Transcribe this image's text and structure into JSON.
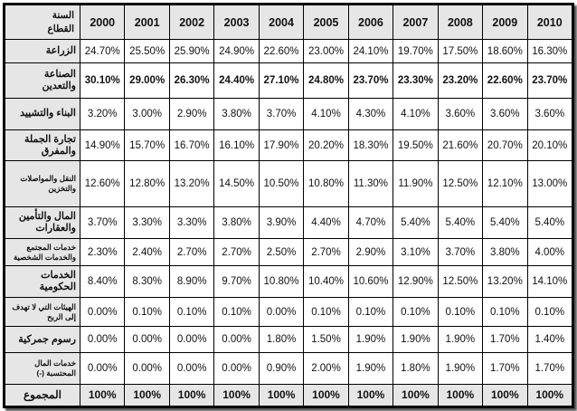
{
  "table": {
    "corner_top": "السنة",
    "corner_bottom": "القطاع",
    "years": [
      "2000",
      "2001",
      "2002",
      "2003",
      "2004",
      "2005",
      "2006",
      "2007",
      "2008",
      "2009",
      "2010"
    ],
    "rows": [
      {
        "label": "الزراعة",
        "values": [
          "24.70%",
          "25.50%",
          "25.90%",
          "24.90%",
          "22.60%",
          "23.00%",
          "24.10%",
          "19.70%",
          "17.50%",
          "18.60%",
          "16.30%"
        ]
      },
      {
        "label": "الصناعة والتعدين",
        "values": [
          "30.10%",
          "29.00%",
          "26.30%",
          "24.40%",
          "27.10%",
          "24.80%",
          "23.70%",
          "23.30%",
          "23.20%",
          "22.60%",
          "23.70%"
        ]
      },
      {
        "label": "البناء والتشييد",
        "values": [
          "3.20%",
          "3.00%",
          "2.90%",
          "3.80%",
          "3.70%",
          "4.10%",
          "4.30%",
          "4.10%",
          "3.60%",
          "3.60%",
          "3.60%"
        ]
      },
      {
        "label": "تجارة الجملة والمفرق",
        "values": [
          "14.90%",
          "15.70%",
          "16.70%",
          "16.10%",
          "17.90%",
          "20.20%",
          "18.30%",
          "19.50%",
          "21.60%",
          "20.70%",
          "20.10%"
        ]
      },
      {
        "label": "النقل والمواصلات والتخزين",
        "values": [
          "12.60%",
          "12.80%",
          "13.20%",
          "14.50%",
          "10.50%",
          "10.80%",
          "11.30%",
          "11.90%",
          "12.50%",
          "12.10%",
          "13.00%"
        ]
      },
      {
        "label": "المال والتأمين والعقارات",
        "values": [
          "3.70%",
          "3.30%",
          "3.30%",
          "3.80%",
          "3.90%",
          "4.40%",
          "4.70%",
          "5.40%",
          "5.40%",
          "5.40%",
          "5.40%"
        ]
      },
      {
        "label": "خدمات المجتمع والخدمات الشخصية",
        "values": [
          "2.30%",
          "2.40%",
          "2.70%",
          "2.70%",
          "2.50%",
          "2.70%",
          "2.90%",
          "3.10%",
          "3.70%",
          "3.80%",
          "4.00%"
        ]
      },
      {
        "label": "الخدمات الحكومية",
        "values": [
          "8.40%",
          "8.30%",
          "8.90%",
          "9.70%",
          "10.80%",
          "10.40%",
          "10.60%",
          "12.90%",
          "12.50%",
          "13.20%",
          "14.10%"
        ]
      },
      {
        "label": "الهيئات التي لا تهدف إلى الربح",
        "values": [
          "0.00%",
          "0.10%",
          "0.10%",
          "0.10%",
          "0.00%",
          "0.10%",
          "0.10%",
          "0.10%",
          "0.10%",
          "0.10%",
          "0.10%"
        ]
      },
      {
        "label": "رسوم جمركية",
        "values": [
          "0.00%",
          "0.00%",
          "0.00%",
          "0.00%",
          "1.80%",
          "1.50%",
          "1.90%",
          "1.90%",
          "1.90%",
          "1.70%",
          "1.40%"
        ]
      },
      {
        "label": "خدمات المال المحتسبة (-)",
        "values": [
          "0.00%",
          "0.00%",
          "0.00%",
          "0.00%",
          "0.90%",
          "2.00%",
          "1.90%",
          "1.80%",
          "1.90%",
          "1.70%",
          "1.70%"
        ]
      },
      {
        "label": "المجموع",
        "values": [
          "100%",
          "100%",
          "100%",
          "100%",
          "100%",
          "100%",
          "100%",
          "100%",
          "100%",
          "100%",
          "100%"
        ]
      }
    ]
  },
  "chart_data": {
    "type": "table",
    "columns": [
      "2000",
      "2001",
      "2002",
      "2003",
      "2004",
      "2005",
      "2006",
      "2007",
      "2008",
      "2009",
      "2010"
    ],
    "row_header": "القطاع",
    "column_header": "السنة",
    "rows": [
      {
        "label": "الزراعة",
        "values": [
          24.7,
          25.5,
          25.9,
          24.9,
          22.6,
          23.0,
          24.1,
          19.7,
          17.5,
          18.6,
          16.3
        ]
      },
      {
        "label": "الصناعة والتعدين",
        "values": [
          30.1,
          29.0,
          26.3,
          24.4,
          27.1,
          24.8,
          23.7,
          23.3,
          23.2,
          22.6,
          23.7
        ]
      },
      {
        "label": "البناء والتشييد",
        "values": [
          3.2,
          3.0,
          2.9,
          3.8,
          3.7,
          4.1,
          4.3,
          4.1,
          3.6,
          3.6,
          3.6
        ]
      },
      {
        "label": "تجارة الجملة والمفرق",
        "values": [
          14.9,
          15.7,
          16.7,
          16.1,
          17.9,
          20.2,
          18.3,
          19.5,
          21.6,
          20.7,
          20.1
        ]
      },
      {
        "label": "النقل والمواصلات والتخزين",
        "values": [
          12.6,
          12.8,
          13.2,
          14.5,
          10.5,
          10.8,
          11.3,
          11.9,
          12.5,
          12.1,
          13.0
        ]
      },
      {
        "label": "المال والتأمين والعقارات",
        "values": [
          3.7,
          3.3,
          3.3,
          3.8,
          3.9,
          4.4,
          4.7,
          5.4,
          5.4,
          5.4,
          5.4
        ]
      },
      {
        "label": "خدمات المجتمع والخدمات الشخصية",
        "values": [
          2.3,
          2.4,
          2.7,
          2.7,
          2.5,
          2.7,
          2.9,
          3.1,
          3.7,
          3.8,
          4.0
        ]
      },
      {
        "label": "الخدمات الحكومية",
        "values": [
          8.4,
          8.3,
          8.9,
          9.7,
          10.8,
          10.4,
          10.6,
          12.9,
          12.5,
          13.2,
          14.1
        ]
      },
      {
        "label": "الهيئات التي لا تهدف إلى الربح",
        "values": [
          0.0,
          0.1,
          0.1,
          0.1,
          0.0,
          0.1,
          0.1,
          0.1,
          0.1,
          0.1,
          0.1
        ]
      },
      {
        "label": "رسوم جمركية",
        "values": [
          0.0,
          0.0,
          0.0,
          0.0,
          1.8,
          1.5,
          1.9,
          1.9,
          1.9,
          1.7,
          1.4
        ]
      },
      {
        "label": "خدمات المال المحتسبة (-)",
        "values": [
          0.0,
          0.0,
          0.0,
          0.0,
          0.9,
          2.0,
          1.9,
          1.8,
          1.9,
          1.7,
          1.7
        ]
      },
      {
        "label": "المجموع",
        "values": [
          100,
          100,
          100,
          100,
          100,
          100,
          100,
          100,
          100,
          100,
          100
        ]
      }
    ]
  }
}
